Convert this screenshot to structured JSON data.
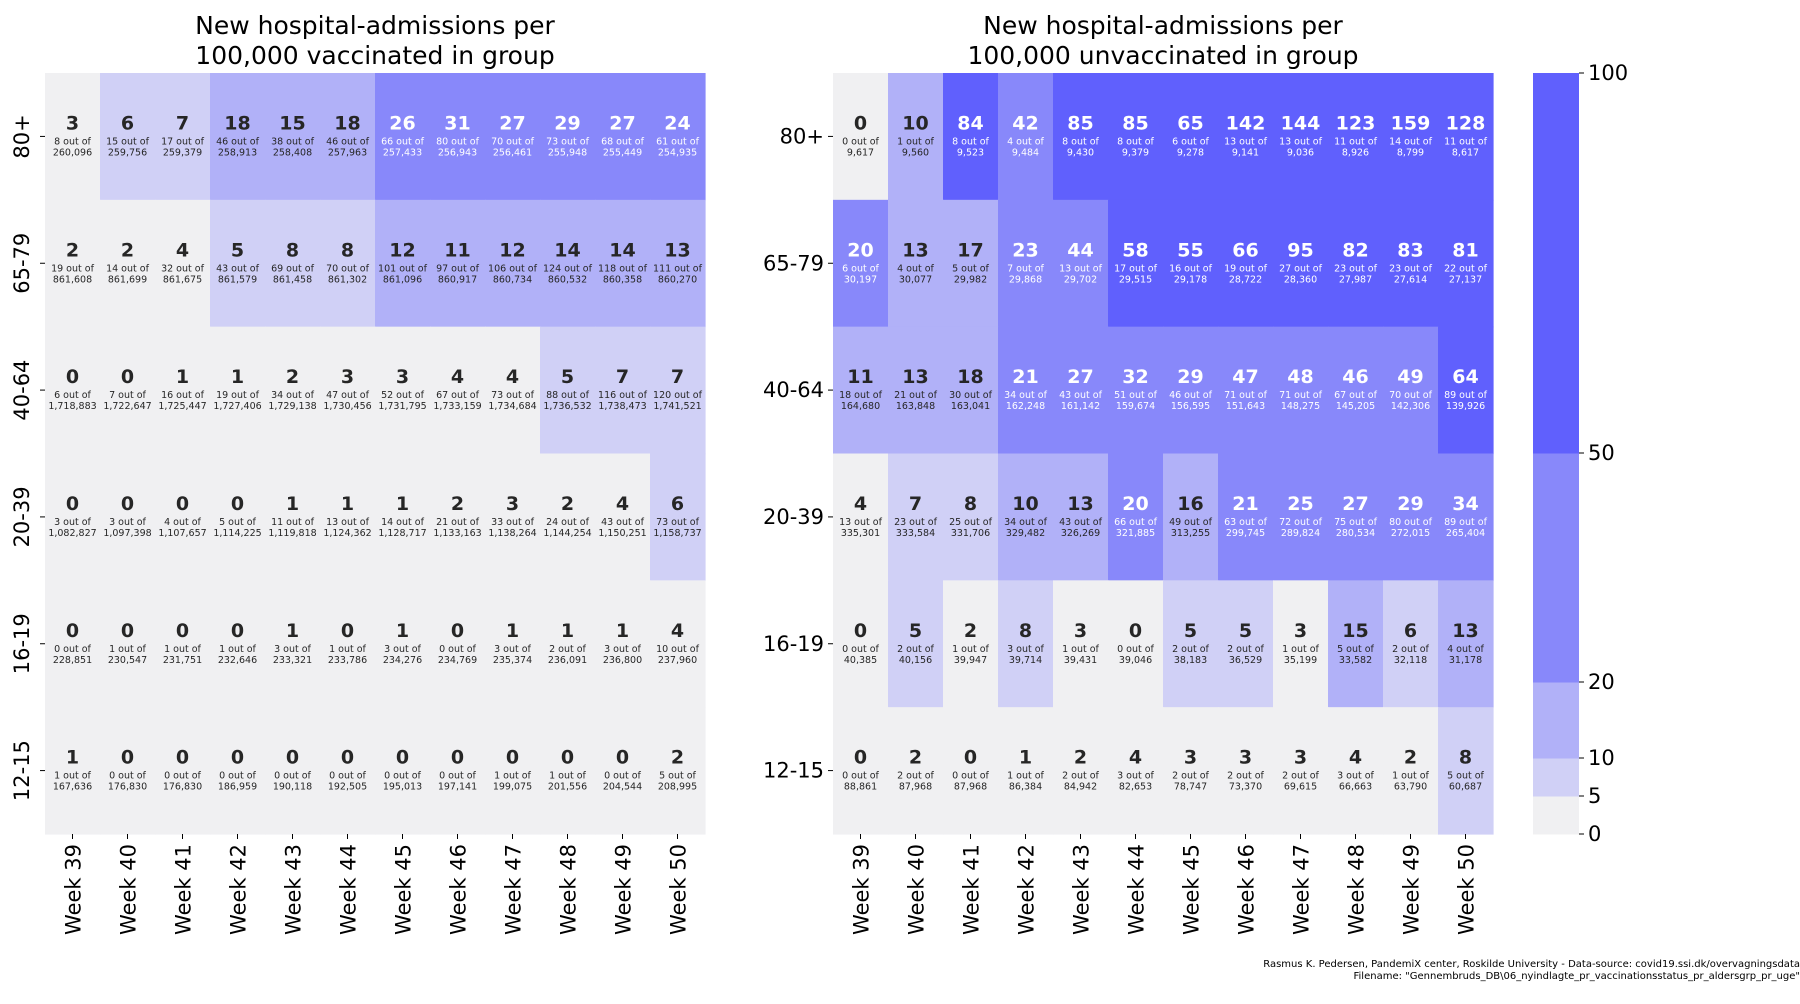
{
  "chart_data": [
    {
      "type": "heatmap",
      "title": "New hospital-admissions per\n100,000 vaccinated in group",
      "rows": [
        "80+",
        "65-79",
        "40-64",
        "20-39",
        "16-19",
        "12-15"
      ],
      "columns": [
        "Week 39",
        "Week 40",
        "Week 41",
        "Week 42",
        "Week 43",
        "Week 44",
        "Week 45",
        "Week 46",
        "Week 47",
        "Week 48",
        "Week 49",
        "Week 50"
      ],
      "values": [
        [
          3,
          6,
          7,
          18,
          15,
          18,
          26,
          31,
          27,
          29,
          27,
          24
        ],
        [
          2,
          2,
          4,
          5,
          8,
          8,
          12,
          11,
          12,
          14,
          14,
          13
        ],
        [
          0,
          0,
          1,
          1,
          2,
          3,
          3,
          4,
          4,
          5,
          7,
          7
        ],
        [
          0,
          0,
          0,
          0,
          1,
          1,
          1,
          2,
          3,
          2,
          4,
          6
        ],
        [
          0,
          0,
          0,
          0,
          1,
          0,
          1,
          0,
          1,
          1,
          1,
          4
        ],
        [
          1,
          0,
          0,
          0,
          0,
          0,
          0,
          0,
          0,
          0,
          0,
          2
        ]
      ],
      "cell_notes": [
        [
          "8 out of\n260,096",
          "15 out of\n259,756",
          "17 out of\n259,379",
          "46 out of\n258,913",
          "38 out of\n258,408",
          "46 out of\n257,963",
          "66 out of\n257,433",
          "80 out of\n256,943",
          "70 out of\n256,461",
          "73 out of\n255,948",
          "68 out of\n255,449",
          "61 out of\n254,935"
        ],
        [
          "19 out of\n861,608",
          "14 out of\n861,699",
          "32 out of\n861,675",
          "43 out of\n861,579",
          "69 out of\n861,458",
          "70 out of\n861,302",
          "101 out of\n861,096",
          "97 out of\n860,917",
          "106 out of\n860,734",
          "124 out of\n860,532",
          "118 out of\n860,358",
          "111 out of\n860,270"
        ],
        [
          "6 out of\n1,718,883",
          "7 out of\n1,722,647",
          "16 out of\n1,725,447",
          "19 out of\n1,727,406",
          "34 out of\n1,729,138",
          "47 out of\n1,730,456",
          "52 out of\n1,731,795",
          "67 out of\n1,733,159",
          "73 out of\n1,734,684",
          "88 out of\n1,736,532",
          "116 out of\n1,738,473",
          "120 out of\n1,741,521"
        ],
        [
          "3 out of\n1,082,827",
          "3 out of\n1,097,398",
          "4 out of\n1,107,657",
          "5 out of\n1,114,225",
          "11 out of\n1,119,818",
          "13 out of\n1,124,362",
          "14 out of\n1,128,717",
          "21 out of\n1,133,163",
          "33 out of\n1,138,264",
          "24 out of\n1,144,254",
          "43 out of\n1,150,251",
          "73 out of\n1,158,737"
        ],
        [
          "0 out of\n228,851",
          "1 out of\n230,547",
          "1 out of\n231,751",
          "1 out of\n232,646",
          "3 out of\n233,321",
          "1 out of\n233,786",
          "3 out of\n234,276",
          "0 out of\n234,769",
          "3 out of\n235,374",
          "2 out of\n236,091",
          "3 out of\n236,800",
          "10 out of\n237,960"
        ],
        [
          "1 out of\n167,636",
          "0 out of\n176,830",
          "0 out of\n176,830",
          "0 out of\n186,959",
          "0 out of\n190,118",
          "0 out of\n192,505",
          "0 out of\n195,013",
          "0 out of\n197,141",
          "1 out of\n199,075",
          "1 out of\n201,556",
          "0 out of\n204,544",
          "5 out of\n208,995"
        ]
      ]
    },
    {
      "type": "heatmap",
      "title": "New hospital-admissions per\n100,000 unvaccinated in group",
      "rows": [
        "80+",
        "65-79",
        "40-64",
        "20-39",
        "16-19",
        "12-15"
      ],
      "columns": [
        "Week 39",
        "Week 40",
        "Week 41",
        "Week 42",
        "Week 43",
        "Week 44",
        "Week 45",
        "Week 46",
        "Week 47",
        "Week 48",
        "Week 49",
        "Week 50"
      ],
      "values": [
        [
          0,
          10,
          84,
          42,
          85,
          85,
          65,
          142,
          144,
          123,
          159,
          128
        ],
        [
          20,
          13,
          17,
          23,
          44,
          58,
          55,
          66,
          95,
          82,
          83,
          81
        ],
        [
          11,
          13,
          18,
          21,
          27,
          32,
          29,
          47,
          48,
          46,
          49,
          64
        ],
        [
          4,
          7,
          8,
          10,
          13,
          20,
          16,
          21,
          25,
          27,
          29,
          34
        ],
        [
          0,
          5,
          2,
          8,
          3,
          0,
          5,
          5,
          3,
          15,
          6,
          13
        ],
        [
          0,
          2,
          0,
          1,
          2,
          4,
          3,
          3,
          3,
          4,
          2,
          8
        ]
      ],
      "cell_notes": [
        [
          "0 out of\n9,617",
          "1 out of\n9,560",
          "8 out of\n9,523",
          "4 out of\n9,484",
          "8 out of\n9,430",
          "8 out of\n9,379",
          "6 out of\n9,278",
          "13 out of\n9,141",
          "13 out of\n9,036",
          "11 out of\n8,926",
          "14 out of\n8,799",
          "11 out of\n8,617"
        ],
        [
          "6 out of\n30,197",
          "4 out of\n30,077",
          "5 out of\n29,982",
          "7 out of\n29,868",
          "13 out of\n29,702",
          "17 out of\n29,515",
          "16 out of\n29,178",
          "19 out of\n28,722",
          "27 out of\n28,360",
          "23 out of\n27,987",
          "23 out of\n27,614",
          "22 out of\n27,137"
        ],
        [
          "18 out of\n164,680",
          "21 out of\n163,848",
          "30 out of\n163,041",
          "34 out of\n162,248",
          "43 out of\n161,142",
          "51 out of\n159,674",
          "46 out of\n156,595",
          "71 out of\n151,643",
          "71 out of\n148,275",
          "67 out of\n145,205",
          "70 out of\n142,306",
          "89 out of\n139,926"
        ],
        [
          "13 out of\n335,301",
          "23 out of\n333,584",
          "25 out of\n331,706",
          "34 out of\n329,482",
          "43 out of\n326,269",
          "66 out of\n321,885",
          "49 out of\n313,255",
          "63 out of\n299,745",
          "72 out of\n289,824",
          "75 out of\n280,534",
          "80 out of\n272,015",
          "89 out of\n265,404"
        ],
        [
          "0 out of\n40,385",
          "2 out of\n40,156",
          "1 out of\n39,947",
          "3 out of\n39,714",
          "1 out of\n39,431",
          "0 out of\n39,046",
          "2 out of\n38,183",
          "2 out of\n36,529",
          "1 out of\n35,199",
          "5 out of\n33,582",
          "2 out of\n32,118",
          "4 out of\n31,178"
        ],
        [
          "0 out of\n88,861",
          "2 out of\n87,968",
          "0 out of\n87,968",
          "1 out of\n86,384",
          "2 out of\n84,942",
          "3 out of\n82,653",
          "2 out of\n78,747",
          "2 out of\n73,370",
          "2 out of\n69,615",
          "3 out of\n66,663",
          "1 out of\n63,790",
          "5 out of\n60,687"
        ]
      ]
    }
  ],
  "colorbar": {
    "boundaries": [
      0,
      5,
      10,
      20,
      50,
      100
    ],
    "tick_labels": [
      "0",
      "5",
      "10",
      "20",
      "50",
      "100"
    ],
    "colors": [
      "#f0f0f2",
      "#d0d0f6",
      "#b1b1f8",
      "#8888fa",
      "#6060fd"
    ]
  },
  "footer": {
    "line1": "Rasmus K. Pedersen, PandemiX center, Roskilde University - Data-source: covid19.ssi.dk/overvagningsdata",
    "line2": "Filename: \"Gennembruds_DB\\06_nyindlagte_pr_vaccinationsstatus_pr_aldersgrp_pr_uge\""
  }
}
